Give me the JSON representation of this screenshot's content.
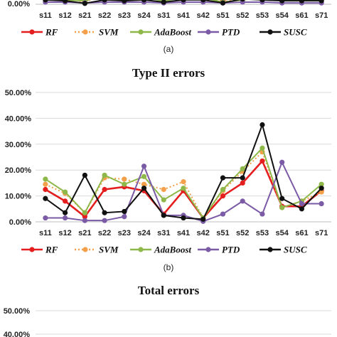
{
  "chart_data": [
    {
      "type": "line",
      "title": "",
      "categories": [
        "s11",
        "s12",
        "s21",
        "s22",
        "s23",
        "s24",
        "s31",
        "s41",
        "s42",
        "s51",
        "s52",
        "s53",
        "s54",
        "s61",
        "s71"
      ],
      "y_tick_labels": [
        "0.00%"
      ],
      "ylim": [
        0,
        50
      ],
      "legend": [
        "RF",
        "SVM",
        "AdaBoost",
        "PTD",
        "SUSC"
      ],
      "caption": "(a)",
      "series": [
        {
          "name": "RF",
          "color": "#e41e1e",
          "values": [
            4,
            3,
            0.5,
            4,
            3,
            3,
            1.5,
            3,
            2.5,
            1,
            2,
            3,
            1.5,
            2,
            2
          ]
        },
        {
          "name": "SVM",
          "color": "#f4a04a",
          "values": [
            3,
            2,
            0.3,
            3,
            2,
            2,
            1,
            2,
            2,
            0.5,
            1.5,
            2,
            1,
            1.5,
            1
          ]
        },
        {
          "name": "AdaBoost",
          "color": "#8fb84a",
          "values": [
            2,
            1,
            0.8,
            2,
            1.5,
            1.5,
            0.8,
            1.5,
            1.5,
            0.5,
            1,
            1.5,
            0.8,
            1,
            1
          ]
        },
        {
          "name": "PTD",
          "color": "#7b5aa6",
          "values": [
            0.5,
            0.5,
            0.3,
            0.5,
            0.5,
            0.5,
            0.3,
            0.5,
            0.5,
            0.3,
            0.5,
            0.5,
            0.3,
            0.3,
            0.3
          ]
        },
        {
          "name": "SUSC",
          "color": "#111111",
          "values": [
            1,
            0.8,
            0.2,
            1,
            0.8,
            1,
            0.5,
            1,
            1,
            0.3,
            1.2,
            1,
            0.8,
            0.8,
            0.8
          ]
        }
      ]
    },
    {
      "type": "line",
      "title": "Type II errors",
      "categories": [
        "s11",
        "s12",
        "s21",
        "s22",
        "s23",
        "s24",
        "s31",
        "s41",
        "s42",
        "s51",
        "s52",
        "s53",
        "s54",
        "s61",
        "s71"
      ],
      "y_tick_labels": [
        "0.00%",
        "10.00%",
        "20.00%",
        "30.00%",
        "40.00%",
        "50.00%"
      ],
      "ylim": [
        0,
        50
      ],
      "legend": [
        "RF",
        "SVM",
        "AdaBoost",
        "PTD",
        "SUSC"
      ],
      "caption": "(b)",
      "series": [
        {
          "name": "RF",
          "color": "#e41e1e",
          "values": [
            12.5,
            8,
            2,
            12.5,
            13.5,
            12,
            3,
            12,
            1.5,
            10,
            15,
            23.5,
            6,
            6,
            12
          ]
        },
        {
          "name": "SVM",
          "color": "#f4a04a",
          "values": [
            14.5,
            11,
            3.5,
            17,
            16.5,
            14.5,
            12.5,
            15.5,
            1.5,
            12,
            19.5,
            27,
            5.5,
            8,
            11.5
          ]
        },
        {
          "name": "AdaBoost",
          "color": "#8fb84a",
          "values": [
            16.5,
            11.5,
            3.5,
            18,
            14.5,
            17.5,
            8.5,
            13,
            1.5,
            12.5,
            20.5,
            28.5,
            5.5,
            8,
            14.5
          ]
        },
        {
          "name": "PTD",
          "color": "#7b5aa6",
          "values": [
            1.5,
            1.5,
            0.5,
            0.5,
            2,
            21.5,
            2.5,
            2.5,
            0.2,
            3,
            8,
            3,
            23,
            7,
            7
          ]
        },
        {
          "name": "SUSC",
          "color": "#111111",
          "values": [
            9,
            3.5,
            18,
            3.5,
            4,
            13,
            2.5,
            1.5,
            1,
            17,
            17,
            37.5,
            9,
            5,
            13
          ]
        }
      ]
    },
    {
      "type": "line",
      "title": "Total errors",
      "y_tick_labels": [
        "50.00%",
        "40.00%"
      ],
      "ylim": [
        0,
        50
      ]
    }
  ]
}
